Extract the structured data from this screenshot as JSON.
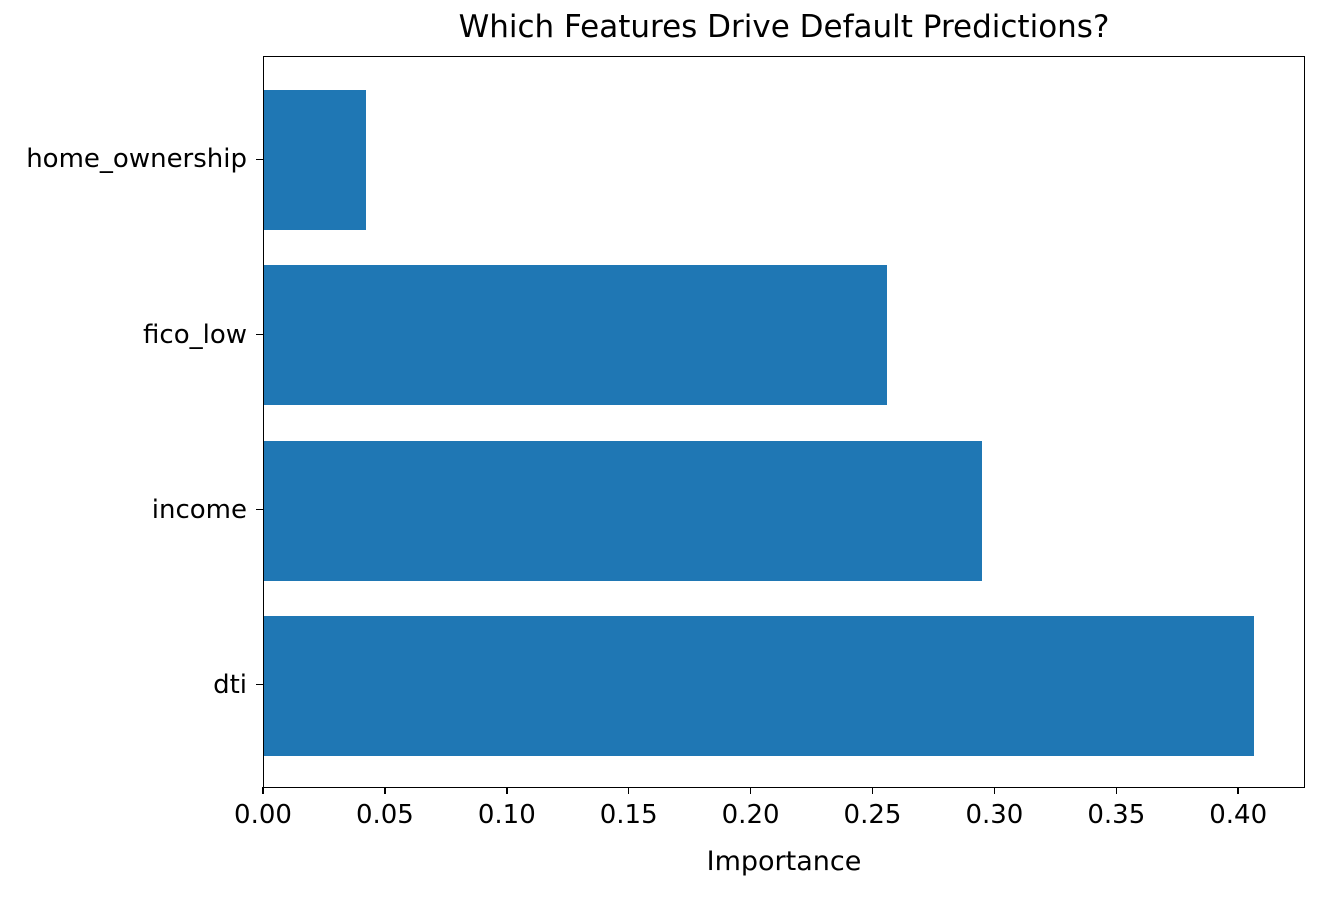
{
  "figure": {
    "background": "#ffffff"
  },
  "chart_data": {
    "type": "bar",
    "orientation": "horizontal",
    "title": "Which Features Drive Default Predictions?",
    "xlabel": "Importance",
    "ylabel": "",
    "category_order": "top-to-bottom",
    "categories": [
      "home_ownership",
      "fico_low",
      "income",
      "dti"
    ],
    "values": [
      0.042,
      0.256,
      0.295,
      0.407
    ],
    "xlim": [
      0,
      0.4274
    ],
    "xtick_values": [
      0.0,
      0.05,
      0.1,
      0.15,
      0.2,
      0.25,
      0.3,
      0.35,
      0.4
    ],
    "xtick_labels": [
      "0.00",
      "0.05",
      "0.10",
      "0.15",
      "0.20",
      "0.25",
      "0.30",
      "0.35",
      "0.40"
    ],
    "bar_color": "#1f77b4",
    "axis_color": "#000000",
    "grid": false,
    "legend": "none"
  }
}
